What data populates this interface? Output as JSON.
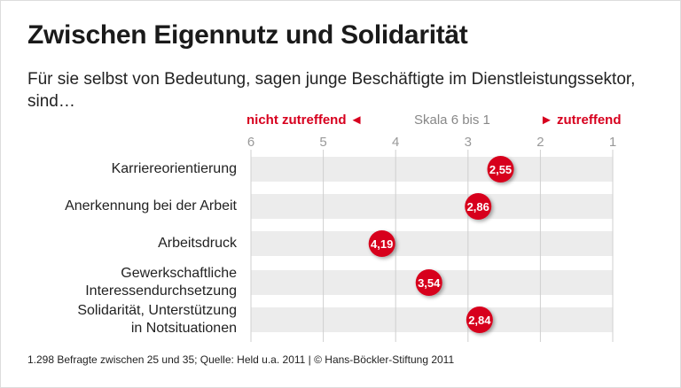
{
  "title": "Zwischen Eigennutz und Solidarität",
  "subtitle": "Für sie selbst von Bedeutung, sagen junge Beschäftigte im Dienstleistungssektor, sind…",
  "source": "1.298 Befragte zwischen 25 und 35; Quelle: Held u.a. 2011 | © Hans-Böckler-Stiftung 2011",
  "colors": {
    "accent": "#d7001e",
    "band": "#ececec",
    "grid": "#cfcfcf"
  },
  "chart_data": {
    "type": "scatter",
    "scale_label": "Skala 6 bis 1",
    "left_label": "nicht zutreffend ◄",
    "right_label": "► zutreffend",
    "xlim": [
      6,
      1
    ],
    "ticks": [
      "6",
      "5",
      "4",
      "3",
      "2",
      "1"
    ],
    "grid": true,
    "categories": [
      "Karriereorientierung",
      "Anerkennung bei der Arbeit",
      "Arbeitsdruck",
      "Gewerkschaftliche Interessendurchsetzung",
      "Solidarität, Unterstützung in Notsituationen"
    ],
    "category_lines": [
      [
        "Karriereorientierung"
      ],
      [
        "Anerkennung bei der Arbeit"
      ],
      [
        "Arbeitsdruck"
      ],
      [
        "Gewerkschaftliche",
        "Interessendurchsetzung"
      ],
      [
        "Solidarität, Unterstützung",
        "in Notsituationen"
      ]
    ],
    "values": [
      2.55,
      2.86,
      4.19,
      3.54,
      2.84
    ],
    "value_labels": [
      "2,55",
      "2,86",
      "4,19",
      "3,54",
      "2,84"
    ]
  }
}
